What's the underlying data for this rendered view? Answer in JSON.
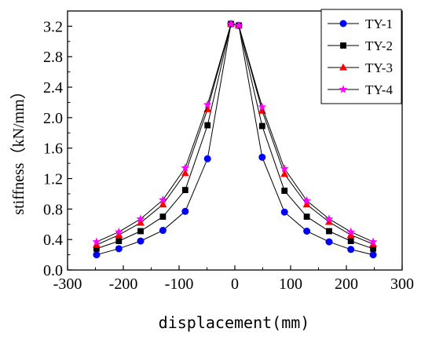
{
  "chart_data": {
    "type": "line",
    "title": "",
    "xlabel": "displacement(mm)",
    "ylabel": "stiffness（kN/mm）",
    "xlim": [
      -300,
      300
    ],
    "ylim": [
      0.0,
      3.4
    ],
    "x_major_ticks": [
      -300,
      -200,
      -100,
      0,
      100,
      200,
      300
    ],
    "x_tick_labels": [
      "-300",
      "-200",
      "-100",
      "0",
      "100",
      "200",
      "300"
    ],
    "y_major_ticks": [
      0.0,
      0.4,
      0.8,
      1.2,
      1.6,
      2.0,
      2.4,
      2.8,
      3.2
    ],
    "y_tick_labels": [
      "0.0",
      "0.4",
      "0.8",
      "1.2",
      "1.6",
      "2.0",
      "2.4",
      "2.8",
      "3.2"
    ],
    "grid": false,
    "legend_position": "top-right",
    "series": [
      {
        "name": "TY-1",
        "marker": "circle",
        "color": "#0000ff",
        "x": [
          -248,
          -208,
          -169,
          -129,
          -89,
          -49,
          -7,
          7,
          49,
          89,
          129,
          169,
          208,
          248
        ],
        "y": [
          0.2,
          0.28,
          0.38,
          0.52,
          0.77,
          1.46,
          3.23,
          3.21,
          1.48,
          0.76,
          0.51,
          0.37,
          0.27,
          0.2
        ]
      },
      {
        "name": "TY-2",
        "marker": "square",
        "color": "#000000",
        "x": [
          -248,
          -208,
          -169,
          -129,
          -89,
          -49,
          -7,
          7,
          49,
          89,
          129,
          169,
          208,
          248
        ],
        "y": [
          0.28,
          0.38,
          0.51,
          0.7,
          1.05,
          1.9,
          3.23,
          3.21,
          1.89,
          1.04,
          0.7,
          0.51,
          0.38,
          0.28
        ]
      },
      {
        "name": "TY-3",
        "marker": "triangle",
        "color": "#ff0000",
        "x": [
          -248,
          -208,
          -169,
          -129,
          -89,
          -49,
          -7,
          7,
          49,
          89,
          129,
          169,
          208,
          248
        ],
        "y": [
          0.33,
          0.46,
          0.62,
          0.86,
          1.27,
          2.11,
          3.23,
          3.21,
          2.09,
          1.26,
          0.86,
          0.63,
          0.46,
          0.34
        ]
      },
      {
        "name": "TY-4",
        "marker": "star",
        "color": "#ff00ff",
        "x": [
          -248,
          -208,
          -169,
          -129,
          -89,
          -49,
          -7,
          7,
          49,
          89,
          129,
          169,
          208,
          248
        ],
        "y": [
          0.37,
          0.5,
          0.67,
          0.92,
          1.34,
          2.17,
          3.23,
          3.21,
          2.14,
          1.33,
          0.91,
          0.67,
          0.5,
          0.37
        ]
      }
    ]
  }
}
